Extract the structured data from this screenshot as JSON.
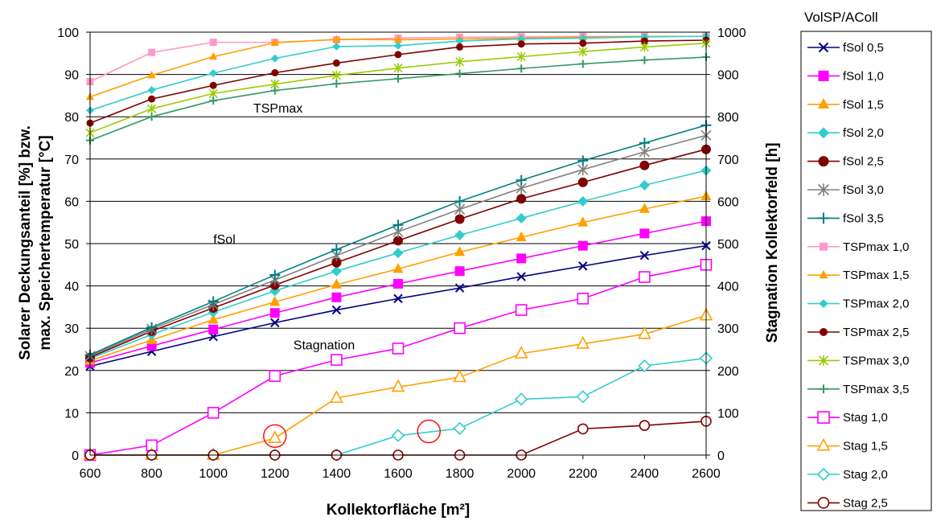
{
  "chart_data": {
    "type": "line",
    "xlabel": "Kollektorfläche [m²]",
    "ylabel_left": [
      "Solarer Deckungsanteil [%] bzw.",
      "max. Speichertemperatur [°C]"
    ],
    "ylabel_right": "Stagnation Kollektorfeld [h]",
    "legend_title": "VolSP/AColl",
    "x": [
      600,
      800,
      1000,
      1200,
      1400,
      1600,
      1800,
      2000,
      2200,
      2400,
      2600
    ],
    "xlim": [
      600,
      2600
    ],
    "ylim_left": [
      0,
      100
    ],
    "ylim_right": [
      0,
      1000
    ],
    "x_ticks": [
      "600",
      "800",
      "1000",
      "1200",
      "1400",
      "1600",
      "1800",
      "2000",
      "2200",
      "2400",
      "2600"
    ],
    "y_ticks_left": [
      "0",
      "10",
      "20",
      "30",
      "40",
      "50",
      "60",
      "70",
      "80",
      "90",
      "100"
    ],
    "y_ticks_right": [
      "0",
      "100",
      "200",
      "300",
      "400",
      "500",
      "600",
      "700",
      "800",
      "900",
      "1000"
    ],
    "grid": "horizontal",
    "legend_position": "right",
    "annotations": [
      {
        "text": "TSPmax",
        "x": 1130,
        "y": 81
      },
      {
        "text": "fSol",
        "x": 1000,
        "y": 50
      },
      {
        "text": "Stagnation",
        "x": 1260,
        "y": 25
      }
    ],
    "highlight_circles": [
      {
        "x": 1200,
        "y": 4.5
      },
      {
        "x": 1700,
        "y": 5.6
      }
    ],
    "series": [
      {
        "name": "fSol 0,5",
        "axis": "left",
        "color": "#000080",
        "marker": "x",
        "size": 5,
        "values": [
          21,
          24.5,
          28,
          31.3,
          34.3,
          37,
          39.5,
          42.2,
          44.7,
          47.2,
          49.5
        ]
      },
      {
        "name": "fSol 1,0",
        "axis": "left",
        "color": "#ff00ff",
        "marker": "square",
        "size": 6,
        "values": [
          21.8,
          25.8,
          29.7,
          33.6,
          37.3,
          40.5,
          43.5,
          46.5,
          49.5,
          52.4,
          55.3
        ]
      },
      {
        "name": "fSol 1,5",
        "axis": "left",
        "color": "#ffa000",
        "marker": "triangle",
        "size": 6.5,
        "values": [
          22.3,
          27.2,
          32,
          36.2,
          40.3,
          44,
          48,
          51.5,
          55,
          58.2,
          61.2
        ]
      },
      {
        "name": "fSol 2,0",
        "axis": "left",
        "color": "#33cccc",
        "marker": "diamond",
        "size": 6.5,
        "values": [
          22.8,
          28.5,
          33.8,
          38.8,
          43.5,
          47.8,
          52,
          56,
          60,
          63.8,
          67.3
        ]
      },
      {
        "name": "fSol 2,5",
        "axis": "left",
        "color": "#800000",
        "marker": "circle",
        "size": 6,
        "values": [
          23.1,
          29.3,
          34.8,
          40.2,
          45.5,
          50.7,
          55.8,
          60.6,
          64.5,
          68.5,
          72.3
        ]
      },
      {
        "name": "fSol 3,0",
        "axis": "left",
        "color": "#808080",
        "marker": "asterisk",
        "size": 6,
        "values": [
          23.4,
          29.8,
          35.6,
          41.4,
          47.2,
          52.8,
          58.1,
          63.1,
          67.5,
          71.7,
          75.6
        ]
      },
      {
        "name": "fSol 3,5",
        "axis": "left",
        "color": "#008080",
        "marker": "plus",
        "size": 6.5,
        "values": [
          23.7,
          30.2,
          36.3,
          42.6,
          48.6,
          54.4,
          60,
          65,
          69.6,
          73.8,
          78
        ]
      },
      {
        "name": "TSPmax 1,0",
        "axis": "left",
        "color": "#ff99cc",
        "marker": "square",
        "size": 4.5,
        "values": [
          88.3,
          95.2,
          97.6,
          97.6,
          98.2,
          98.6,
          98.8,
          98.9,
          99,
          99,
          99
        ]
      },
      {
        "name": "TSPmax 1,5",
        "axis": "left",
        "color": "#ffa000",
        "marker": "triangle",
        "size": 5,
        "values": [
          84.7,
          89.8,
          94.2,
          97.5,
          98.3,
          98.2,
          98.4,
          98.6,
          98.8,
          99,
          99
        ]
      },
      {
        "name": "TSPmax 2,0",
        "axis": "left",
        "color": "#33cccc",
        "marker": "diamond",
        "size": 5,
        "values": [
          81.5,
          86.3,
          90.3,
          93.8,
          96.6,
          96.8,
          97.9,
          98.4,
          98.6,
          98.9,
          99
        ]
      },
      {
        "name": "TSPmax 2,5",
        "axis": "left",
        "color": "#800000",
        "marker": "circle",
        "size": 4.5,
        "values": [
          78.5,
          84.2,
          87.4,
          90.4,
          92.7,
          94.7,
          96.5,
          97.2,
          97.4,
          97.9,
          98.1
        ]
      },
      {
        "name": "TSPmax 3,0",
        "axis": "left",
        "color": "#99cc00",
        "marker": "asterisk",
        "size": 5,
        "values": [
          76.2,
          81.9,
          85.5,
          87.7,
          89.8,
          91.5,
          93,
          94.2,
          95.4,
          96.5,
          97.4
        ]
      },
      {
        "name": "TSPmax 3,5",
        "axis": "left",
        "color": "#339966",
        "marker": "plus",
        "size": 5,
        "values": [
          74.4,
          80,
          83.8,
          86.2,
          87.8,
          89,
          90.2,
          91.4,
          92.5,
          93.4,
          94.1
        ]
      },
      {
        "name": "Stag 1,0",
        "axis": "right",
        "color": "#ff00ff",
        "marker": "square-open",
        "size": 6.5,
        "values": [
          0,
          23,
          100,
          187,
          225,
          252,
          300,
          343,
          370,
          421,
          450
        ]
      },
      {
        "name": "Stag 1,5",
        "axis": "right",
        "color": "#ffa000",
        "marker": "triangle-open",
        "size": 7,
        "values": [
          0,
          0,
          0,
          40,
          135,
          161,
          184,
          240,
          263,
          286,
          330
        ]
      },
      {
        "name": "Stag 2,0",
        "axis": "right",
        "color": "#33cccc",
        "marker": "diamond-open",
        "size": 7,
        "values": [
          0,
          0,
          0,
          0,
          0,
          46,
          63,
          132,
          138,
          211,
          229
        ]
      },
      {
        "name": "Stag 2,5",
        "axis": "right",
        "color": "#800000",
        "marker": "circle-open",
        "size": 6,
        "values": [
          0,
          0,
          0,
          0,
          0,
          0,
          0,
          0,
          62,
          70,
          80
        ]
      }
    ]
  }
}
